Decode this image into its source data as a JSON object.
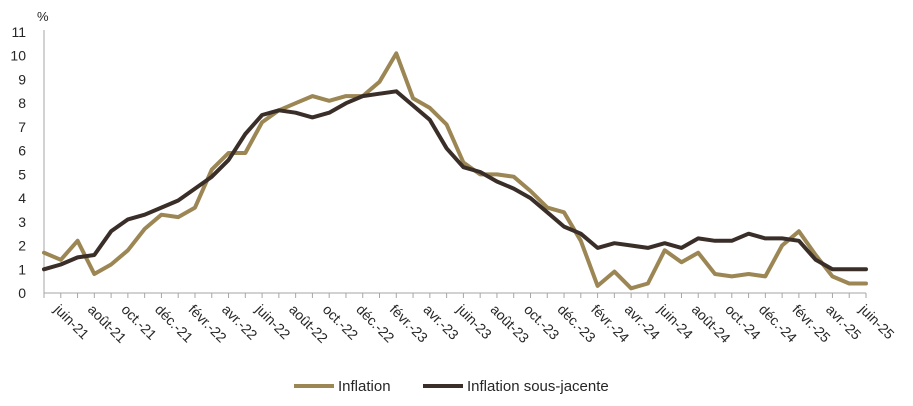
{
  "chart_data": {
    "type": "line",
    "ylabel": "%",
    "ylim": [
      0,
      11
    ],
    "yticks": [
      0,
      1,
      2,
      3,
      4,
      5,
      6,
      7,
      8,
      9,
      10,
      11
    ],
    "grid": false,
    "legend_position": "bottom",
    "x": [
      "mai-21",
      "juin-21",
      "juil.-21",
      "août-21",
      "sept.-21",
      "oct.-21",
      "nov.-21",
      "déc.-21",
      "janv.-22",
      "févr.-22",
      "mars-22",
      "avr.-22",
      "mai-22",
      "juin-22",
      "juil.-22",
      "août-22",
      "sept.-22",
      "oct.-22",
      "nov.-22",
      "déc.-22",
      "janv.-23",
      "févr.-23",
      "mars-23",
      "avr.-23",
      "mai-23",
      "juin-23",
      "juil.-23",
      "août-23",
      "sept.-23",
      "oct.-23",
      "nov.-23",
      "déc.-23",
      "janv.-24",
      "févr.-24",
      "mars-24",
      "avr.-24",
      "mai-24",
      "juin-24",
      "juil.-24",
      "août-24",
      "sept.-24",
      "oct.-24",
      "nov.-24",
      "déc.-24",
      "janv.-25",
      "févr.-25",
      "mars-25",
      "avr.-25",
      "mai-25",
      "juin-25"
    ],
    "xtick_labels": [
      "juin-21",
      "août-21",
      "oct.-21",
      "déc.-21",
      "févr.-22",
      "avr.-22",
      "juin-22",
      "août-22",
      "oct.-22",
      "déc.-22",
      "févr.-23",
      "avr.-23",
      "juin-23",
      "août-23",
      "oct.-23",
      "déc.-23",
      "févr.-24",
      "avr.-24",
      "juin-24",
      "août-24",
      "oct.-24",
      "déc.-24",
      "févr.-25",
      "avr.-25",
      "juin-25"
    ],
    "series": [
      {
        "name": "Inflation",
        "color": "#9B8654",
        "values": [
          1.7,
          1.4,
          2.2,
          0.8,
          1.2,
          1.8,
          2.7,
          3.3,
          3.2,
          3.6,
          5.2,
          5.9,
          5.9,
          7.2,
          7.7,
          8.0,
          8.3,
          8.1,
          8.3,
          8.3,
          8.9,
          10.1,
          8.2,
          7.8,
          7.1,
          5.5,
          5.0,
          5.0,
          4.9,
          4.3,
          3.6,
          3.4,
          2.2,
          0.3,
          0.9,
          0.2,
          0.4,
          1.8,
          1.3,
          1.7,
          0.8,
          0.7,
          0.8,
          0.7,
          2.0,
          2.6,
          1.6,
          0.7,
          0.4,
          0.4
        ]
      },
      {
        "name": "Inflation sous-jacente",
        "color": "#3A2E28",
        "values": [
          1.0,
          1.2,
          1.5,
          1.6,
          2.6,
          3.1,
          3.3,
          3.6,
          3.9,
          4.4,
          4.9,
          5.6,
          6.7,
          7.5,
          7.7,
          7.6,
          7.4,
          7.6,
          8.0,
          8.3,
          8.4,
          8.5,
          7.9,
          7.3,
          6.1,
          5.3,
          5.1,
          4.7,
          4.4,
          4.0,
          3.4,
          2.8,
          2.5,
          1.9,
          2.1,
          2.0,
          1.9,
          2.1,
          1.9,
          2.3,
          2.2,
          2.2,
          2.5,
          2.3,
          2.3,
          2.2,
          1.4,
          1.0,
          1.0,
          1.0
        ]
      }
    ]
  }
}
